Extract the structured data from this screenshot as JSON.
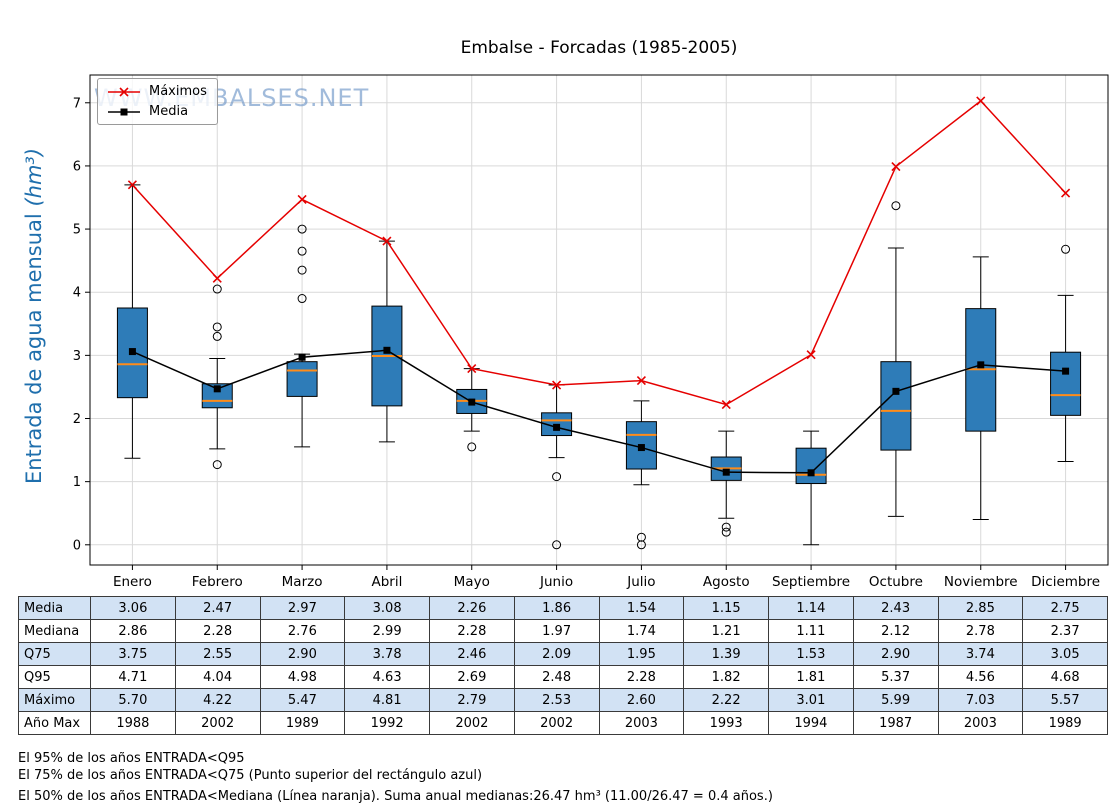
{
  "title": "Embalse - Forcadas (1985-2005)",
  "watermark": "WWW.EMBALSES.NET",
  "ylabel": "Entrada de agua mensual",
  "ylabel_unit": "(hm³)",
  "legend": [
    {
      "label": "Máximos",
      "marker": "x",
      "color": "#e50000"
    },
    {
      "label": "Media",
      "marker": "square",
      "color": "#000000"
    }
  ],
  "chart_data": {
    "type": "boxplot",
    "title": "Embalse - Forcadas (1985-2005)",
    "ylabel": "Entrada de agua mensual (hm³)",
    "categories": [
      "Enero",
      "Febrero",
      "Marzo",
      "Abril",
      "Mayo",
      "Junio",
      "Julio",
      "Agosto",
      "Septiembre",
      "Octubre",
      "Noviembre",
      "Diciembre"
    ],
    "yticks": [
      0,
      1,
      2,
      3,
      4,
      5,
      6,
      7
    ],
    "ylim": [
      -0.32,
      7.44
    ],
    "grid": true,
    "colors": {
      "box": "#2e7cb8",
      "median": "#ff8c1a",
      "grid": "#d9d9d9",
      "frame": "#000000"
    },
    "boxes": [
      {
        "q1": 2.33,
        "median": 2.86,
        "q3": 3.75,
        "whisker_low": 1.37,
        "whisker_high": 5.7,
        "outliers": []
      },
      {
        "q1": 2.17,
        "median": 2.28,
        "q3": 2.55,
        "whisker_low": 1.52,
        "whisker_high": 2.95,
        "outliers": [
          1.27,
          3.3,
          3.45,
          4.05
        ]
      },
      {
        "q1": 2.35,
        "median": 2.76,
        "q3": 2.9,
        "whisker_low": 1.55,
        "whisker_high": 3.02,
        "outliers": [
          3.9,
          4.35,
          4.65,
          5.0
        ]
      },
      {
        "q1": 2.2,
        "median": 2.99,
        "q3": 3.78,
        "whisker_low": 1.63,
        "whisker_high": 4.81,
        "outliers": []
      },
      {
        "q1": 2.08,
        "median": 2.28,
        "q3": 2.46,
        "whisker_low": 1.8,
        "whisker_high": 2.79,
        "outliers": [
          1.55
        ]
      },
      {
        "q1": 1.73,
        "median": 1.97,
        "q3": 2.09,
        "whisker_low": 1.38,
        "whisker_high": 2.53,
        "outliers": [
          1.08,
          0.0
        ]
      },
      {
        "q1": 1.2,
        "median": 1.74,
        "q3": 1.95,
        "whisker_low": 0.95,
        "whisker_high": 2.28,
        "outliers": [
          0.12,
          0.0
        ]
      },
      {
        "q1": 1.02,
        "median": 1.21,
        "q3": 1.39,
        "whisker_low": 0.42,
        "whisker_high": 1.8,
        "outliers": [
          0.28,
          0.2
        ]
      },
      {
        "q1": 0.97,
        "median": 1.11,
        "q3": 1.53,
        "whisker_low": 0.0,
        "whisker_high": 1.8,
        "outliers": []
      },
      {
        "q1": 1.5,
        "median": 2.12,
        "q3": 2.9,
        "whisker_low": 0.45,
        "whisker_high": 4.7,
        "outliers": [
          5.37
        ]
      },
      {
        "q1": 1.8,
        "median": 2.78,
        "q3": 3.74,
        "whisker_low": 0.4,
        "whisker_high": 4.56,
        "outliers": []
      },
      {
        "q1": 2.05,
        "median": 2.37,
        "q3": 3.05,
        "whisker_low": 1.32,
        "whisker_high": 3.95,
        "outliers": [
          4.68
        ]
      }
    ],
    "series": [
      {
        "name": "Máximos",
        "color": "#e50000",
        "marker": "x",
        "values": [
          5.7,
          4.22,
          5.47,
          4.81,
          2.79,
          2.53,
          2.6,
          2.22,
          3.01,
          5.99,
          7.03,
          5.57
        ]
      },
      {
        "name": "Media",
        "color": "#000000",
        "marker": "square",
        "values": [
          3.06,
          2.47,
          2.97,
          3.08,
          2.26,
          1.86,
          1.54,
          1.15,
          1.14,
          2.43,
          2.85,
          2.75
        ]
      }
    ]
  },
  "table": {
    "rows": [
      {
        "label": "Media",
        "values": [
          "3.06",
          "2.47",
          "2.97",
          "3.08",
          "2.26",
          "1.86",
          "1.54",
          "1.15",
          "1.14",
          "2.43",
          "2.85",
          "2.75"
        ]
      },
      {
        "label": "Mediana",
        "values": [
          "2.86",
          "2.28",
          "2.76",
          "2.99",
          "2.28",
          "1.97",
          "1.74",
          "1.21",
          "1.11",
          "2.12",
          "2.78",
          "2.37"
        ]
      },
      {
        "label": "Q75",
        "values": [
          "3.75",
          "2.55",
          "2.90",
          "3.78",
          "2.46",
          "2.09",
          "1.95",
          "1.39",
          "1.53",
          "2.90",
          "3.74",
          "3.05"
        ]
      },
      {
        "label": "Q95",
        "values": [
          "4.71",
          "4.04",
          "4.98",
          "4.63",
          "2.69",
          "2.48",
          "2.28",
          "1.82",
          "1.81",
          "5.37",
          "4.56",
          "4.68"
        ]
      },
      {
        "label": "Máximo",
        "values": [
          "5.70",
          "4.22",
          "5.47",
          "4.81",
          "2.79",
          "2.53",
          "2.60",
          "2.22",
          "3.01",
          "5.99",
          "7.03",
          "5.57"
        ]
      },
      {
        "label": "Año Max",
        "values": [
          "1988",
          "2002",
          "1989",
          "1992",
          "2002",
          "2002",
          "2003",
          "1993",
          "1994",
          "1987",
          "2003",
          "1989"
        ]
      }
    ]
  },
  "footnotes": [
    "El 95% de los años ENTRADA<Q95",
    "El 75% de los años ENTRADA<Q75 (Punto superior del rectángulo azul)",
    "El 50% de los años ENTRADA<Mediana (Línea naranja). Suma anual medianas:26.47 hm³ (11.00/26.47 = 0.4 años.)"
  ]
}
